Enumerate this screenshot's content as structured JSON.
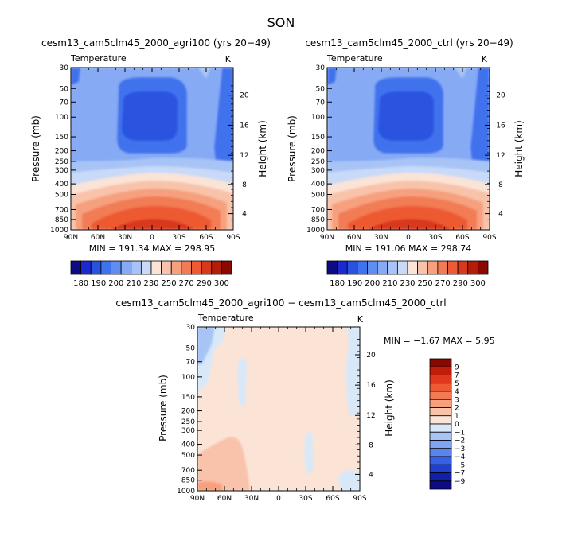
{
  "page_title": "SON",
  "chart_data": [
    {
      "type": "heatmap",
      "title": "cesm13_cam5clm45_2000_agri100 (yrs 20−49)",
      "variable_label": "Temperature",
      "units_label": "K",
      "ylabel": "Pressure (mb)",
      "ylabel_right": "Height (km)",
      "x_ticks": [
        "90N",
        "60N",
        "30N",
        "0",
        "30S",
        "60S",
        "90S"
      ],
      "y_ticks": [
        "30",
        "50",
        "70",
        "100",
        "150",
        "200",
        "250",
        "300",
        "400",
        "500",
        "700",
        "850",
        "1000"
      ],
      "height_ticks": [
        "20",
        "16",
        "12",
        "8",
        "4"
      ],
      "stats_text": "MIN = 191.34   MAX = 298.95",
      "min": 191.34,
      "max": 298.95,
      "colorbar_labels": [
        "180",
        "190",
        "200",
        "210",
        "230",
        "250",
        "270",
        "290",
        "300"
      ],
      "colorbar_colors": [
        "#0c0a85",
        "#1a2ad0",
        "#2a52e0",
        "#3f72ee",
        "#5f8ef2",
        "#86aaf4",
        "#a8c4f6",
        "#c8daf8",
        "#fbe3d6",
        "#f8c3aa",
        "#f6a07e",
        "#f27b55",
        "#ed5a33",
        "#d8381c",
        "#b31d0c",
        "#8b0800"
      ]
    },
    {
      "type": "heatmap",
      "title": "cesm13_cam5clm45_2000_ctrl (yrs 20−49)",
      "variable_label": "Temperature",
      "units_label": "K",
      "ylabel": "Pressure (mb)",
      "ylabel_right": "Height (km)",
      "x_ticks": [
        "90N",
        "60N",
        "30N",
        "0",
        "30S",
        "60S",
        "90S"
      ],
      "y_ticks": [
        "30",
        "50",
        "70",
        "100",
        "150",
        "200",
        "250",
        "300",
        "400",
        "500",
        "700",
        "850",
        "1000"
      ],
      "height_ticks": [
        "20",
        "16",
        "12",
        "8",
        "4"
      ],
      "stats_text": "MIN = 191.06   MAX = 298.74",
      "min": 191.06,
      "max": 298.74,
      "colorbar_labels": [
        "180",
        "190",
        "200",
        "210",
        "230",
        "250",
        "270",
        "290",
        "300"
      ],
      "colorbar_colors": [
        "#0c0a85",
        "#1a2ad0",
        "#2a52e0",
        "#3f72ee",
        "#5f8ef2",
        "#86aaf4",
        "#a8c4f6",
        "#c8daf8",
        "#fbe3d6",
        "#f8c3aa",
        "#f6a07e",
        "#f27b55",
        "#ed5a33",
        "#d8381c",
        "#b31d0c",
        "#8b0800"
      ]
    },
    {
      "type": "heatmap",
      "title": "cesm13_cam5clm45_2000_agri100 − cesm13_cam5clm45_2000_ctrl",
      "variable_label": "Temperature",
      "units_label": "K",
      "ylabel": "Pressure (mb)",
      "ylabel_right": "Height (km)",
      "x_ticks": [
        "90N",
        "60N",
        "30N",
        "0",
        "30S",
        "60S",
        "90S"
      ],
      "y_ticks": [
        "30",
        "50",
        "70",
        "100",
        "150",
        "200",
        "250",
        "300",
        "400",
        "500",
        "700",
        "850",
        "1000"
      ],
      "height_ticks": [
        "20",
        "16",
        "12",
        "8",
        "4"
      ],
      "stats_text": "MIN =   −1.67   MAX =    5.95",
      "min": -1.67,
      "max": 5.95,
      "colorbar_labels": [
        "9",
        "7",
        "5",
        "4",
        "3",
        "2",
        "1",
        "0",
        "−1",
        "−2",
        "−3",
        "−4",
        "−5",
        "−7",
        "−9"
      ],
      "colorbar_colors": [
        "#8b0800",
        "#c01e0c",
        "#e0381c",
        "#ed5a33",
        "#f27b55",
        "#f6a07e",
        "#f8c3aa",
        "#fbe3d6",
        "#d8e8f8",
        "#a8c4f6",
        "#7fa4f2",
        "#5a84ee",
        "#3860e4",
        "#2040d0",
        "#1020a8",
        "#0c0a85"
      ]
    }
  ]
}
